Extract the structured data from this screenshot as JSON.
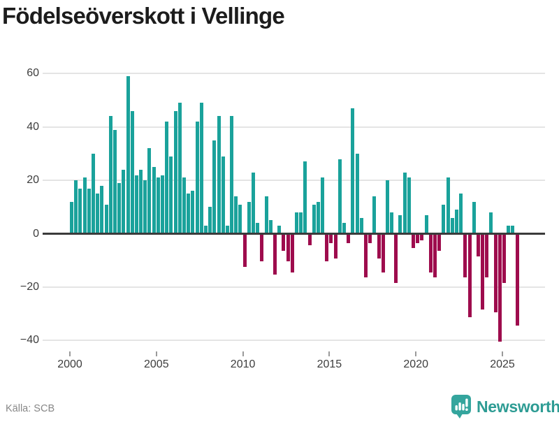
{
  "title": "Födelseöverskott i Vellinge",
  "footer": {
    "source": "Källa: SCB",
    "brand": "Newsworthy"
  },
  "colors": {
    "positive": "#1AA29B",
    "negative": "#9E0C4D",
    "grid": "#E4E4E4",
    "zero_line": "#3B3B3B",
    "tick": "#9A9A9A",
    "axis_text": "#3D3D3D",
    "title_text": "#1C1C1C",
    "source_text": "#878787",
    "brand_text": "#2E9C94",
    "brand_icon": "#34A59D",
    "background": "#FFFFFF"
  },
  "chart_data": {
    "type": "bar",
    "title": "Födelseöverskott i Vellinge",
    "frequency": "quarterly",
    "start": "2000-Q1",
    "end": "2025-Q4",
    "grid": true,
    "legend": false,
    "x_tick_years": [
      2000,
      2005,
      2010,
      2015,
      2020,
      2025
    ],
    "x_tick_labels": [
      "2000",
      "2005",
      "2010",
      "2015",
      "2020",
      "2025"
    ],
    "y_ticks": [
      60,
      40,
      20,
      0,
      -20,
      -40
    ],
    "y_tick_labels": [
      "60",
      "40",
      "20",
      "0",
      "−20",
      "−40"
    ],
    "ylim": [
      -46,
      64
    ],
    "series": [
      {
        "name": "Födelseöverskott",
        "values": [
          12,
          20,
          17,
          21,
          17,
          30,
          15,
          18,
          11,
          44,
          39,
          19,
          24,
          59,
          46,
          22,
          24,
          20,
          32,
          25,
          21,
          22,
          42,
          29,
          46,
          49,
          21,
          15,
          16,
          42,
          49,
          3,
          10,
          35,
          44,
          29,
          3,
          44,
          14,
          11,
          -12,
          12,
          23,
          4,
          -10,
          14,
          5,
          -15,
          3,
          -6,
          -10,
          -14,
          8,
          8,
          27,
          -4,
          11,
          12,
          21,
          -10,
          -3,
          -9,
          28,
          4,
          -3,
          47,
          30,
          6,
          -16,
          -3,
          14,
          -9,
          -14,
          20,
          8,
          -18,
          7,
          23,
          21,
          -5,
          -3,
          -2,
          7,
          -14,
          -16,
          -6,
          11,
          21,
          6,
          9,
          15,
          -16,
          -31,
          12,
          -8,
          -28,
          -16,
          8,
          -29,
          -40,
          -18,
          3,
          3,
          -34
        ]
      }
    ]
  }
}
